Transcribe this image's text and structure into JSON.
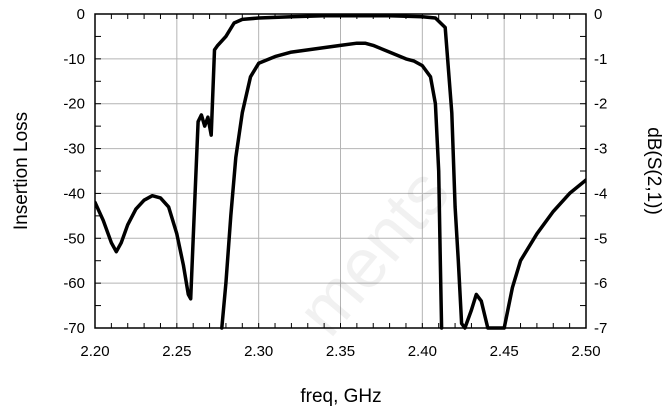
{
  "chart_data": {
    "type": "line",
    "xlabel": "freq,  GHz",
    "ylabel_left": "Insertion Loss",
    "ylabel_right": "dB(S(2,1))",
    "watermark": "ments",
    "xlim": [
      2.2,
      2.5
    ],
    "ylim_left": [
      -70,
      0
    ],
    "ylim_right": [
      -7,
      0
    ],
    "x_ticks": [
      "2.20",
      "2.25",
      "2.30",
      "2.35",
      "2.40",
      "2.45",
      "2.50"
    ],
    "y_ticks_left": [
      "0",
      "-10",
      "-20",
      "-30",
      "-40",
      "-50",
      "-60",
      "-70"
    ],
    "y_ticks_right": [
      "0",
      "-1",
      "-2",
      "-3",
      "-4",
      "-5",
      "-6",
      "-7"
    ],
    "grid": true,
    "series": [
      {
        "axis": "left",
        "x": [
          2.2,
          2.205,
          2.21,
          2.213,
          2.216,
          2.22,
          2.225,
          2.23,
          2.235,
          2.24,
          2.245,
          2.25,
          2.254,
          2.257,
          2.2585,
          2.26,
          2.263,
          2.265,
          2.267,
          2.269,
          2.271,
          2.273,
          2.275,
          2.28,
          2.285,
          2.29,
          2.3,
          2.32,
          2.34,
          2.36,
          2.38,
          2.4,
          2.408,
          2.414,
          2.418,
          2.42,
          2.422,
          2.424,
          2.426,
          2.43,
          2.433,
          2.436,
          2.44,
          2.446,
          2.45,
          2.455,
          2.46,
          2.47,
          2.48,
          2.49,
          2.5
        ],
        "y": [
          -42,
          -46,
          -51,
          -53,
          -51,
          -47,
          -43.5,
          -41.5,
          -40.5,
          -41,
          -43,
          -49,
          -56,
          -62.5,
          -63.5,
          -50,
          -24,
          -22.5,
          -25,
          -23,
          -27,
          -8,
          -7,
          -5,
          -2,
          -1.2,
          -0.9,
          -0.6,
          -0.4,
          -0.4,
          -0.4,
          -0.6,
          -0.9,
          -3,
          -22,
          -43,
          -55,
          -69,
          -70,
          -66,
          -62.5,
          -64,
          -70,
          -70,
          -70,
          -61,
          -55,
          -49,
          -44,
          -40,
          -37
        ]
      },
      {
        "axis": "right",
        "x": [
          2.2775,
          2.28,
          2.283,
          2.286,
          2.29,
          2.295,
          2.3,
          2.31,
          2.32,
          2.33,
          2.34,
          2.35,
          2.36,
          2.365,
          2.37,
          2.38,
          2.39,
          2.395,
          2.4,
          2.405,
          2.408,
          2.41,
          2.411,
          2.4118
        ],
        "y": [
          -7,
          -6,
          -4.5,
          -3.2,
          -2.2,
          -1.4,
          -1.1,
          -0.95,
          -0.85,
          -0.8,
          -0.75,
          -0.7,
          -0.65,
          -0.65,
          -0.7,
          -0.85,
          -1,
          -1.05,
          -1.15,
          -1.4,
          -2,
          -3.5,
          -5.5,
          -7
        ]
      }
    ]
  }
}
